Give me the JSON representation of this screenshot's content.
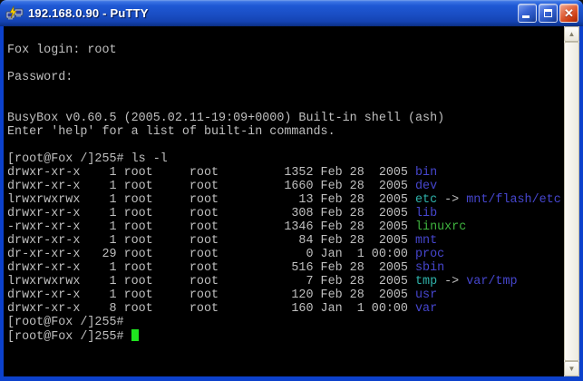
{
  "window": {
    "title": "192.168.0.90 - PuTTY"
  },
  "icons": {
    "close": "✕",
    "scroll_up": "▲",
    "scroll_down": "▼"
  },
  "colors": {
    "bg": "#000000",
    "fg": "#BFBFBF",
    "dir": "#4646CE",
    "link": "#2FB3AB",
    "exec": "#3FB43F",
    "cursor": "#1FE51F"
  },
  "terminal": {
    "lines": [
      [],
      [
        {
          "t": "Fox login: root"
        }
      ],
      [],
      [
        {
          "t": "Password:"
        }
      ],
      [],
      [],
      [
        {
          "t": "BusyBox v0.60.5 (2005.02.11-19:09+0000) Built-in shell (ash)"
        }
      ],
      [
        {
          "t": "Enter 'help' for a list of built-in commands."
        }
      ],
      [],
      [
        {
          "t": "[root@Fox /]255# ls -l"
        }
      ],
      [
        {
          "t": "drwxr-xr-x    1 root     root         1352 Feb 28  2005 "
        },
        {
          "t": "bin",
          "c": "dir"
        }
      ],
      [
        {
          "t": "drwxr-xr-x    1 root     root         1660 Feb 28  2005 "
        },
        {
          "t": "dev",
          "c": "dir"
        }
      ],
      [
        {
          "t": "lrwxrwxrwx    1 root     root           13 Feb 28  2005 "
        },
        {
          "t": "etc",
          "c": "link"
        },
        {
          "t": " -> "
        },
        {
          "t": "mnt/flash/etc",
          "c": "dir"
        }
      ],
      [
        {
          "t": "drwxr-xr-x    1 root     root          308 Feb 28  2005 "
        },
        {
          "t": "lib",
          "c": "dir"
        }
      ],
      [
        {
          "t": "-rwxr-xr-x    1 root     root         1346 Feb 28  2005 "
        },
        {
          "t": "linuxrc",
          "c": "exec"
        }
      ],
      [
        {
          "t": "drwxr-xr-x    1 root     root           84 Feb 28  2005 "
        },
        {
          "t": "mnt",
          "c": "dir"
        }
      ],
      [
        {
          "t": "dr-xr-xr-x   29 root     root            0 Jan  1 00:00 "
        },
        {
          "t": "proc",
          "c": "dir"
        }
      ],
      [
        {
          "t": "drwxr-xr-x    1 root     root          516 Feb 28  2005 "
        },
        {
          "t": "sbin",
          "c": "dir"
        }
      ],
      [
        {
          "t": "lrwxrwxrwx    1 root     root            7 Feb 28  2005 "
        },
        {
          "t": "tmp",
          "c": "link"
        },
        {
          "t": " -> "
        },
        {
          "t": "var/tmp",
          "c": "dir"
        }
      ],
      [
        {
          "t": "drwxr-xr-x    1 root     root          120 Feb 28  2005 "
        },
        {
          "t": "usr",
          "c": "dir"
        }
      ],
      [
        {
          "t": "drwxr-xr-x    8 root     root          160 Jan  1 00:00 "
        },
        {
          "t": "var",
          "c": "dir"
        }
      ],
      [
        {
          "t": "[root@Fox /]255#"
        }
      ],
      [
        {
          "t": "[root@Fox /]255# "
        },
        {
          "c": "cursor"
        }
      ]
    ]
  }
}
